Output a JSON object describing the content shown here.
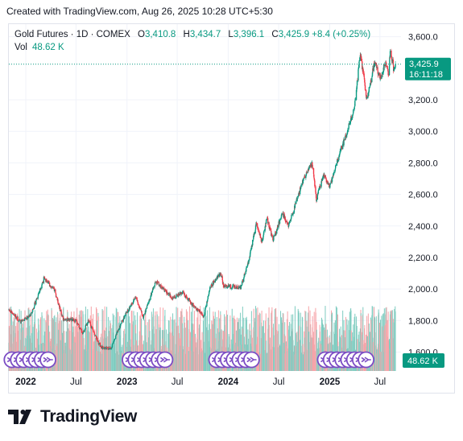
{
  "attribution": "Created with TradingView.com, Aug 26, 2025 10:28 UTC+5:30",
  "legend": {
    "symbol": "Gold Futures · 1D · COMEX",
    "open_label": "O",
    "open": "3,410.8",
    "high_label": "H",
    "high": "3,434.7",
    "low_label": "L",
    "low": "3,396.1",
    "close_label": "C",
    "close": "3,425.9",
    "change": "+8.4 (+0.25%)",
    "volume_label": "Vol",
    "volume": "48.62 K"
  },
  "brand": {
    "name": "TradingView"
  },
  "colors": {
    "up": "#089981",
    "down": "#f23645",
    "up_volume": "#7fccc0",
    "down_volume": "#f6a3a8",
    "grid": "#f0f3fa",
    "axis_text": "#131722",
    "price_line": "#089981",
    "event_icon": "#7b4cc4"
  },
  "chart_data": {
    "type": "candlestick",
    "y_ticks": [
      1600,
      1800,
      2000,
      2200,
      2400,
      2600,
      2800,
      3000,
      3200,
      3600
    ],
    "y_tick_labels": [
      "1,600.0",
      "1,800.0",
      "2,000.0",
      "2,200.0",
      "2,400.0",
      "2,600.0",
      "2,800.0",
      "3,000.0",
      "3,200.0",
      "3,600.0"
    ],
    "ylim": [
      1480,
      3680
    ],
    "x_ticks": [
      {
        "label": "2022",
        "date": "2022-01-01",
        "bold": true
      },
      {
        "label": "Jul",
        "date": "2022-07-01",
        "bold": false
      },
      {
        "label": "2023",
        "date": "2023-01-01",
        "bold": true
      },
      {
        "label": "Jul",
        "date": "2023-07-01",
        "bold": false
      },
      {
        "label": "2024",
        "date": "2024-01-01",
        "bold": true
      },
      {
        "label": "Jul",
        "date": "2024-07-01",
        "bold": false
      },
      {
        "label": "2025",
        "date": "2025-01-01",
        "bold": true
      },
      {
        "label": "Jul",
        "date": "2025-07-01",
        "bold": false
      }
    ],
    "x_range": [
      "2021-11-01",
      "2025-09-15"
    ],
    "last_price": 3425.9,
    "last_price_label": "3,425.9",
    "countdown": "16:11:18",
    "volume_label": "48.62 K",
    "price_path": [
      [
        "2021-11-01",
        1870
      ],
      [
        "2021-12-15",
        1790
      ],
      [
        "2022-01-20",
        1840
      ],
      [
        "2022-03-08",
        2070
      ],
      [
        "2022-04-15",
        1990
      ],
      [
        "2022-05-15",
        1810
      ],
      [
        "2022-07-01",
        1800
      ],
      [
        "2022-07-25",
        1720
      ],
      [
        "2022-08-15",
        1800
      ],
      [
        "2022-09-28",
        1630
      ],
      [
        "2022-11-03",
        1620
      ],
      [
        "2022-12-15",
        1800
      ],
      [
        "2023-02-01",
        1950
      ],
      [
        "2023-03-01",
        1820
      ],
      [
        "2023-04-15",
        2050
      ],
      [
        "2023-06-15",
        1940
      ],
      [
        "2023-07-20",
        1980
      ],
      [
        "2023-08-20",
        1910
      ],
      [
        "2023-10-05",
        1830
      ],
      [
        "2023-10-28",
        2010
      ],
      [
        "2023-12-04",
        2100
      ],
      [
        "2023-12-15",
        2020
      ],
      [
        "2024-02-15",
        2010
      ],
      [
        "2024-03-15",
        2180
      ],
      [
        "2024-04-12",
        2420
      ],
      [
        "2024-05-01",
        2300
      ],
      [
        "2024-05-20",
        2450
      ],
      [
        "2024-06-10",
        2310
      ],
      [
        "2024-07-15",
        2480
      ],
      [
        "2024-08-05",
        2400
      ],
      [
        "2024-09-25",
        2680
      ],
      [
        "2024-10-30",
        2800
      ],
      [
        "2024-11-14",
        2570
      ],
      [
        "2024-12-10",
        2730
      ],
      [
        "2024-12-31",
        2640
      ],
      [
        "2025-01-31",
        2830
      ],
      [
        "2025-02-24",
        2950
      ],
      [
        "2025-03-31",
        3150
      ],
      [
        "2025-04-21",
        3500
      ],
      [
        "2025-05-15",
        3200
      ],
      [
        "2025-06-13",
        3450
      ],
      [
        "2025-07-01",
        3330
      ],
      [
        "2025-07-23",
        3440
      ],
      [
        "2025-08-01",
        3350
      ],
      [
        "2025-08-08",
        3530
      ],
      [
        "2025-08-20",
        3380
      ],
      [
        "2025-08-26",
        3425.9
      ]
    ],
    "event_markers": [
      "2021-11-12",
      "2021-12-05",
      "2021-12-25",
      "2022-01-18",
      "2022-02-08",
      "2022-03-01",
      "2022-03-22",
      "2023-01-12",
      "2023-02-02",
      "2023-02-23",
      "2023-03-16",
      "2023-04-06",
      "2023-04-27",
      "2023-05-18",
      "2023-11-20",
      "2023-12-11",
      "2024-01-01",
      "2024-01-22",
      "2024-02-12",
      "2024-03-04",
      "2024-03-25",
      "2024-12-16",
      "2025-01-06",
      "2025-01-27",
      "2025-02-17",
      "2025-03-10",
      "2025-03-31",
      "2025-04-21",
      "2025-05-12"
    ]
  }
}
